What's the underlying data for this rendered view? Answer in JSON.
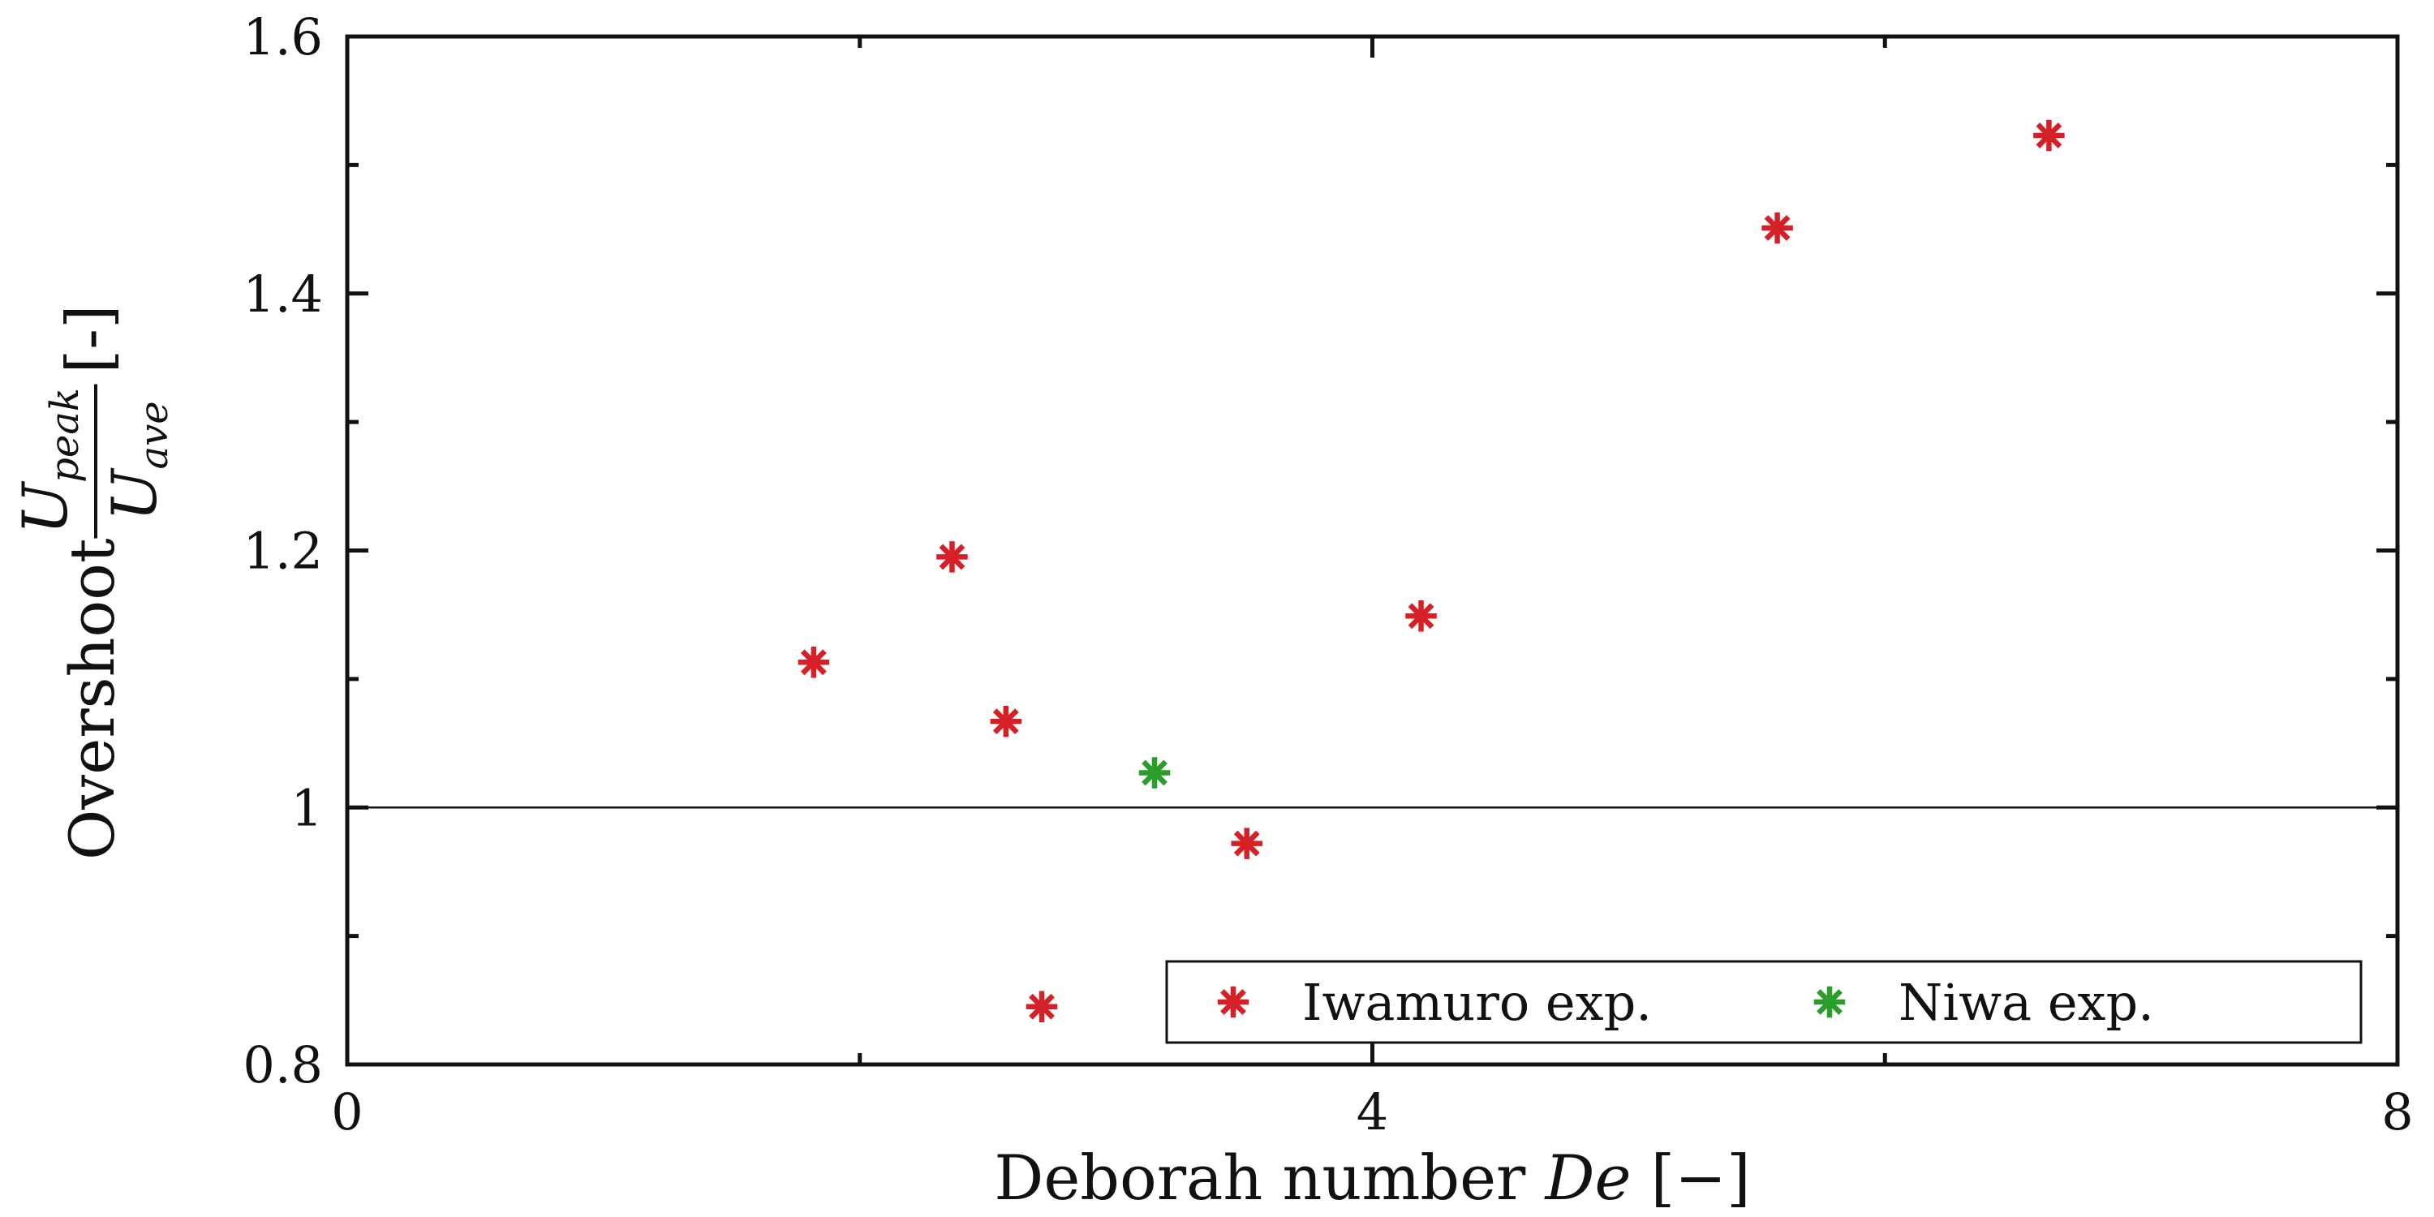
{
  "chart_data": {
    "type": "scatter",
    "xlabel": {
      "text": "Deborah number ",
      "symbol": "De",
      "unit": " [−]"
    },
    "ylabel": {
      "text": "Overshoot ",
      "numerator_base": "U",
      "numerator_sub": "peak",
      "denominator_base": "U",
      "denominator_sub": "ave",
      "unit": "[-]"
    },
    "xlim": [
      0,
      8
    ],
    "ylim": [
      0.8,
      1.6
    ],
    "x_ticks": [
      0,
      4,
      8
    ],
    "x_tick_labels": [
      "0",
      "4",
      "8"
    ],
    "x_minor_ticks": [
      2,
      6
    ],
    "y_ticks": [
      0.8,
      1.0,
      1.2,
      1.4,
      1.6
    ],
    "y_tick_labels": [
      "0.8",
      "1",
      "1.2",
      "1.4",
      "1.6"
    ],
    "y_minor_ticks": [
      0.9,
      1.1,
      1.3,
      1.5
    ],
    "reference_line_y": 1.0,
    "grid": false,
    "legend_position": "bottom-right",
    "series": [
      {
        "name": "Iwamuro exp.",
        "color": "#d62028",
        "marker": "star",
        "points": [
          {
            "x": 1.82,
            "y": 1.113
          },
          {
            "x": 2.36,
            "y": 1.195
          },
          {
            "x": 2.57,
            "y": 1.067
          },
          {
            "x": 2.71,
            "y": 0.845
          },
          {
            "x": 3.51,
            "y": 0.972
          },
          {
            "x": 4.19,
            "y": 1.149
          },
          {
            "x": 5.58,
            "y": 1.451
          },
          {
            "x": 6.64,
            "y": 1.523
          }
        ]
      },
      {
        "name": "Niwa exp.",
        "color": "#2a9d2a",
        "marker": "star",
        "points": [
          {
            "x": 3.15,
            "y": 1.027
          }
        ]
      }
    ]
  }
}
